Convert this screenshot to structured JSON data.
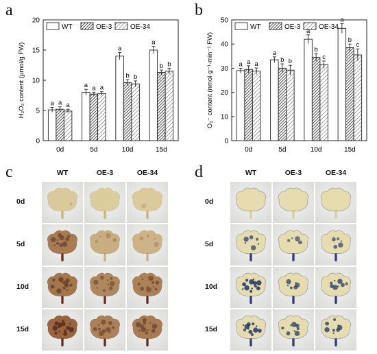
{
  "panels": {
    "a": "a",
    "b": "b",
    "c": "c",
    "d": "d"
  },
  "chart_data": [
    {
      "type": "bar",
      "ylabel": "H₂O₂ content (μmol/g FW)",
      "categories": [
        "0d",
        "5d",
        "10d",
        "15d"
      ],
      "ylim": [
        0,
        20
      ],
      "yticks": [
        "0",
        "5",
        "10",
        "15",
        "20"
      ],
      "legend_placement": "top",
      "series": [
        {
          "name": "WT",
          "values": [
            5.1,
            8.0,
            14.0,
            15.0
          ],
          "errors": [
            0.4,
            0.5,
            0.6,
            0.6
          ],
          "letters": [
            "a",
            "a",
            "a",
            "a"
          ]
        },
        {
          "name": "OE-3",
          "values": [
            5.2,
            7.7,
            9.6,
            11.3
          ],
          "errors": [
            0.4,
            0.3,
            0.5,
            0.4
          ],
          "letters": [
            "a",
            "a",
            "b",
            "b"
          ]
        },
        {
          "name": "OE-34",
          "values": [
            4.9,
            7.8,
            9.4,
            11.5
          ],
          "errors": [
            0.3,
            0.3,
            0.5,
            0.5
          ],
          "letters": [
            "a",
            "a",
            "b",
            "b"
          ]
        }
      ]
    },
    {
      "type": "bar",
      "ylabel": "O₂⁻ content (nmol·g⁻¹·min⁻¹ FW)",
      "categories": [
        "0d",
        "5d",
        "10d",
        "15d"
      ],
      "ylim": [
        0,
        50
      ],
      "yticks": [
        "0",
        "10",
        "20",
        "30",
        "40",
        "50"
      ],
      "legend_placement": "top",
      "series": [
        {
          "name": "WT",
          "values": [
            29.0,
            33.5,
            42.0,
            46.5
          ],
          "errors": [
            1.0,
            1.2,
            1.8,
            2.0
          ],
          "letters": [
            "a",
            "a",
            "a",
            "a"
          ]
        },
        {
          "name": "OE-3",
          "values": [
            29.5,
            30.0,
            34.5,
            38.5
          ],
          "errors": [
            1.5,
            1.8,
            1.6,
            1.5
          ],
          "letters": [
            "a",
            "b",
            "b",
            "b"
          ]
        },
        {
          "name": "OE-34",
          "values": [
            28.8,
            29.2,
            31.5,
            35.5
          ],
          "errors": [
            1.3,
            2.0,
            1.5,
            2.5
          ],
          "letters": [
            "a",
            "b",
            "c",
            "c"
          ]
        }
      ]
    }
  ],
  "photo_panels": [
    {
      "columns": [
        "WT",
        "OE-3",
        "OE-34"
      ],
      "rows": [
        "0d",
        "5d",
        "10d",
        "15d"
      ],
      "stain_levels": [
        [
          0.05,
          0.03,
          0.04
        ],
        [
          0.75,
          0.3,
          0.25
        ],
        [
          0.8,
          0.65,
          0.7
        ],
        [
          0.95,
          0.7,
          0.75
        ]
      ]
    },
    {
      "columns": [
        "WT",
        "OE-3",
        "OE-34"
      ],
      "rows": [
        "0d",
        "5d",
        "10d",
        "15d"
      ],
      "stain_levels": [
        [
          0.0,
          0.0,
          0.0
        ],
        [
          0.45,
          0.3,
          0.35
        ],
        [
          0.85,
          0.45,
          0.55
        ],
        [
          0.8,
          0.55,
          0.6
        ]
      ]
    }
  ]
}
